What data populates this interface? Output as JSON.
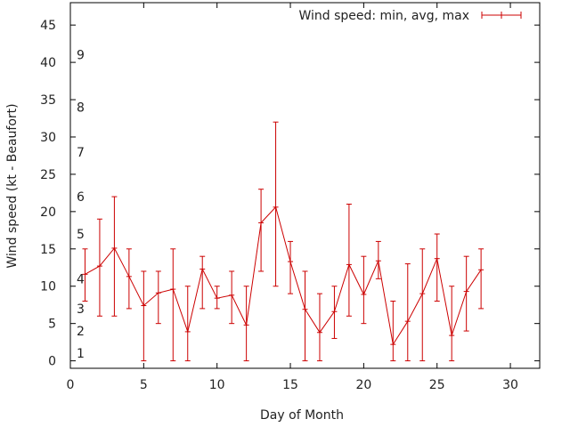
{
  "chart_data": {
    "type": "line",
    "title": "",
    "xlabel": "Day of Month",
    "ylabel": "Wind speed (kt - Beaufort)",
    "xlim": [
      0,
      32
    ],
    "ylim": [
      -1,
      48
    ],
    "x_ticks": [
      0,
      5,
      10,
      15,
      20,
      25,
      30
    ],
    "y_ticks": [
      0,
      5,
      10,
      15,
      20,
      25,
      30,
      35,
      40,
      45
    ],
    "beaufort_labels": [
      {
        "label": "1",
        "value": 1
      },
      {
        "label": "2",
        "value": 4
      },
      {
        "label": "3",
        "value": 7
      },
      {
        "label": "4",
        "value": 11
      },
      {
        "label": "5",
        "value": 17
      },
      {
        "label": "6",
        "value": 22
      },
      {
        "label": "7",
        "value": 28
      },
      {
        "label": "8",
        "value": 34
      },
      {
        "label": "9",
        "value": 41
      }
    ],
    "legend": {
      "label": "Wind speed: min, avg, max",
      "position": "top-right"
    },
    "grid": false,
    "color": "#cc0000",
    "series": [
      {
        "name": "Wind speed: min, avg, max",
        "x": [
          1,
          2,
          3,
          4,
          5,
          6,
          7,
          8,
          9,
          10,
          11,
          12,
          13,
          14,
          15,
          16,
          17,
          18,
          19,
          20,
          21,
          22,
          23,
          24,
          25,
          26,
          27,
          28
        ],
        "avg": [
          11.6,
          12.7,
          15.1,
          11.3,
          7.4,
          9.1,
          9.6,
          3.9,
          12.3,
          8.4,
          8.8,
          4.8,
          18.5,
          20.6,
          13.3,
          6.9,
          3.8,
          6.6,
          12.9,
          8.9,
          13.4,
          2.2,
          5.3,
          9.0,
          13.7,
          3.4,
          9.3,
          12.2
        ],
        "min": [
          8,
          6,
          6,
          7,
          0,
          5,
          0,
          0,
          7,
          7,
          5,
          0,
          12,
          10,
          9,
          0,
          0,
          3,
          6,
          5,
          11,
          0,
          0,
          0,
          8,
          0,
          4,
          7
        ],
        "max": [
          15,
          19,
          22,
          15,
          12,
          12,
          15,
          10,
          14,
          10,
          12,
          10,
          23,
          32,
          16,
          12,
          9,
          10,
          21,
          14,
          16,
          8,
          13,
          15,
          17,
          10,
          14,
          15
        ]
      }
    ]
  }
}
